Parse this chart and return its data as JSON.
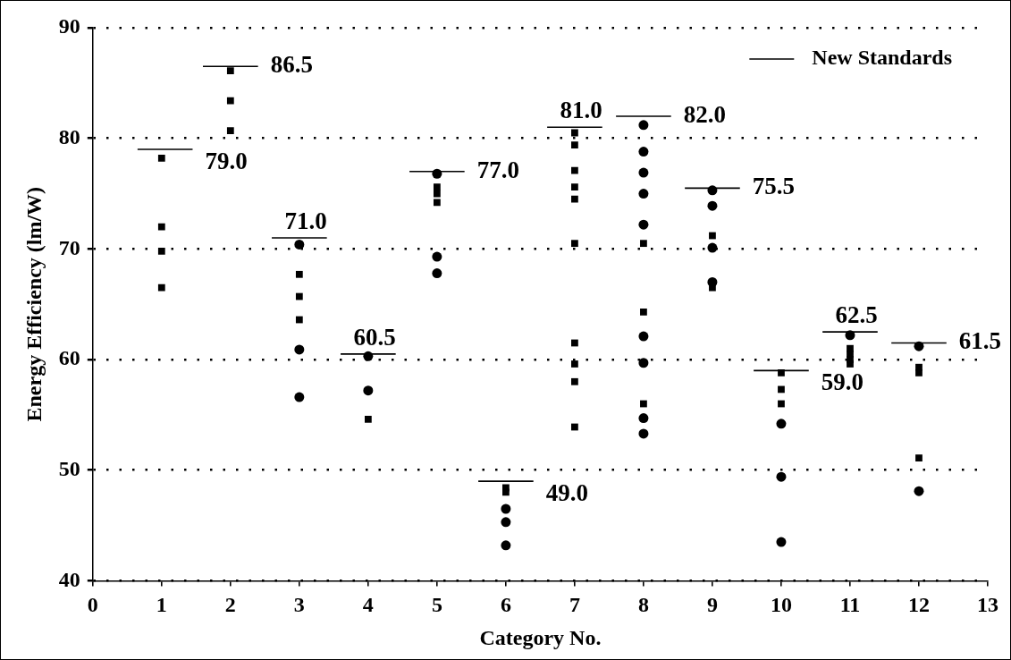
{
  "chart_data": {
    "type": "scatter",
    "xlabel": "Category No.",
    "ylabel": "Energy Efficiency (lm/W)",
    "xlim": [
      0,
      13
    ],
    "xticks": [
      0,
      1,
      2,
      3,
      4,
      5,
      6,
      7,
      8,
      9,
      10,
      11,
      12,
      13
    ],
    "ylim": [
      40,
      90
    ],
    "yticks": [
      40,
      50,
      60,
      70,
      80,
      90
    ],
    "grid": "y",
    "legend": "top right",
    "series": [
      {
        "marker": "square",
        "color": "#000000",
        "x": [
          1,
          1,
          1,
          1,
          2,
          2,
          2,
          3,
          3,
          3,
          4,
          5,
          5,
          5,
          7,
          7,
          7,
          7,
          7,
          7,
          7,
          7,
          7,
          7,
          8,
          8,
          8,
          6,
          6,
          9,
          9,
          10,
          10,
          10,
          11,
          11,
          11,
          11,
          12,
          12,
          12
        ],
        "values": [
          78.2,
          72.0,
          69.8,
          66.5,
          86.1,
          83.4,
          80.7,
          67.7,
          65.7,
          63.6,
          54.6,
          75.6,
          75.0,
          74.2,
          80.5,
          79.4,
          77.1,
          75.6,
          74.5,
          70.5,
          61.5,
          59.6,
          58.0,
          53.9,
          70.5,
          64.3,
          56.0,
          48.4,
          48.0,
          71.2,
          66.5,
          58.8,
          57.3,
          56.0,
          61.0,
          60.5,
          60.0,
          59.6,
          59.3,
          58.8,
          51.1
        ]
      },
      {
        "marker": "circle",
        "color": "#000000",
        "x": [
          3,
          3,
          3,
          4,
          4,
          5,
          5,
          5,
          6,
          6,
          6,
          8,
          8,
          8,
          8,
          8,
          8,
          8,
          8,
          8,
          9,
          9,
          9,
          9,
          10,
          10,
          10,
          11,
          12,
          12
        ],
        "values": [
          70.4,
          60.9,
          56.6,
          60.3,
          57.2,
          76.8,
          69.3,
          67.8,
          46.5,
          45.3,
          43.2,
          81.2,
          78.8,
          76.9,
          75.0,
          72.2,
          62.1,
          59.7,
          54.7,
          53.3,
          75.3,
          73.9,
          70.1,
          67.0,
          54.2,
          49.4,
          43.5,
          62.2,
          61.2,
          48.1
        ]
      },
      {
        "type": "line",
        "name": "New Standards",
        "marker": "none",
        "line_style": "solid",
        "color": "#000000",
        "x": [
          0.65,
          1.45,
          1.5,
          1.6,
          2.4,
          2.5,
          2.6,
          3.4,
          3.5,
          3.6,
          4.4,
          4.5,
          4.6,
          5.4,
          5.5,
          5.6,
          6.4,
          6.5,
          6.6,
          7.4,
          7.5,
          7.6,
          8.4,
          8.5,
          8.6,
          9.4,
          9.5,
          9.6,
          10.4,
          10.5,
          10.6,
          11.4,
          11.5,
          11.6,
          12.4
        ],
        "values": [
          79.0,
          79.0,
          null,
          86.5,
          86.5,
          null,
          71.0,
          71.0,
          null,
          60.5,
          60.5,
          null,
          77.0,
          77.0,
          null,
          49.0,
          49.0,
          null,
          81.0,
          81.0,
          null,
          82.0,
          82.0,
          null,
          75.5,
          75.5,
          null,
          59.0,
          59.0,
          null,
          62.5,
          62.5,
          null,
          61.5,
          61.5
        ],
        "value_labels": [
          null,
          "79.0",
          null,
          null,
          "86.5",
          null,
          null,
          "71.0",
          null,
          null,
          "60.5",
          null,
          null,
          "77.0",
          null,
          null,
          "49.0",
          null,
          null,
          "81.0",
          null,
          null,
          "82.0",
          null,
          null,
          "75.5",
          null,
          null,
          "59.0",
          null,
          null,
          "62.5",
          null,
          null,
          "61.5"
        ]
      }
    ]
  }
}
